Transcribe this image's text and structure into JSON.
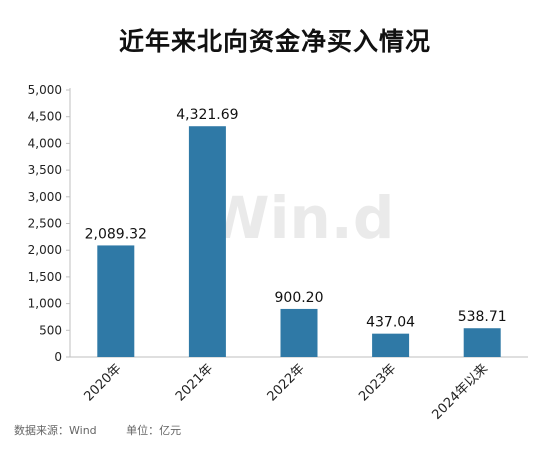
{
  "chart_data": {
    "type": "bar",
    "title": "近年来北向资金净买入情况",
    "categories": [
      "2020年",
      "2021年",
      "2022年",
      "2023年",
      "2024年以来"
    ],
    "values": [
      2089.32,
      4321.69,
      900.2,
      437.04,
      538.71
    ],
    "value_labels": [
      "2,089.32",
      "4,321.69",
      "900.20",
      "437.04",
      "538.71"
    ],
    "ylim": [
      0,
      5000
    ],
    "yticks": [
      0,
      500,
      1000,
      1500,
      2000,
      2500,
      3000,
      3500,
      4000,
      4500,
      5000
    ],
    "ytick_labels": [
      "0",
      "500",
      "1,000",
      "1,500",
      "2,000",
      "2,500",
      "3,000",
      "3,500",
      "4,000",
      "4,500",
      "5,000"
    ],
    "xlabel": "",
    "ylabel": "",
    "grid": false,
    "bar_color": "#2f79a6"
  },
  "watermark": "Win.d",
  "footer": {
    "source": "数据来源：Wind",
    "unit": "单位：亿元"
  }
}
